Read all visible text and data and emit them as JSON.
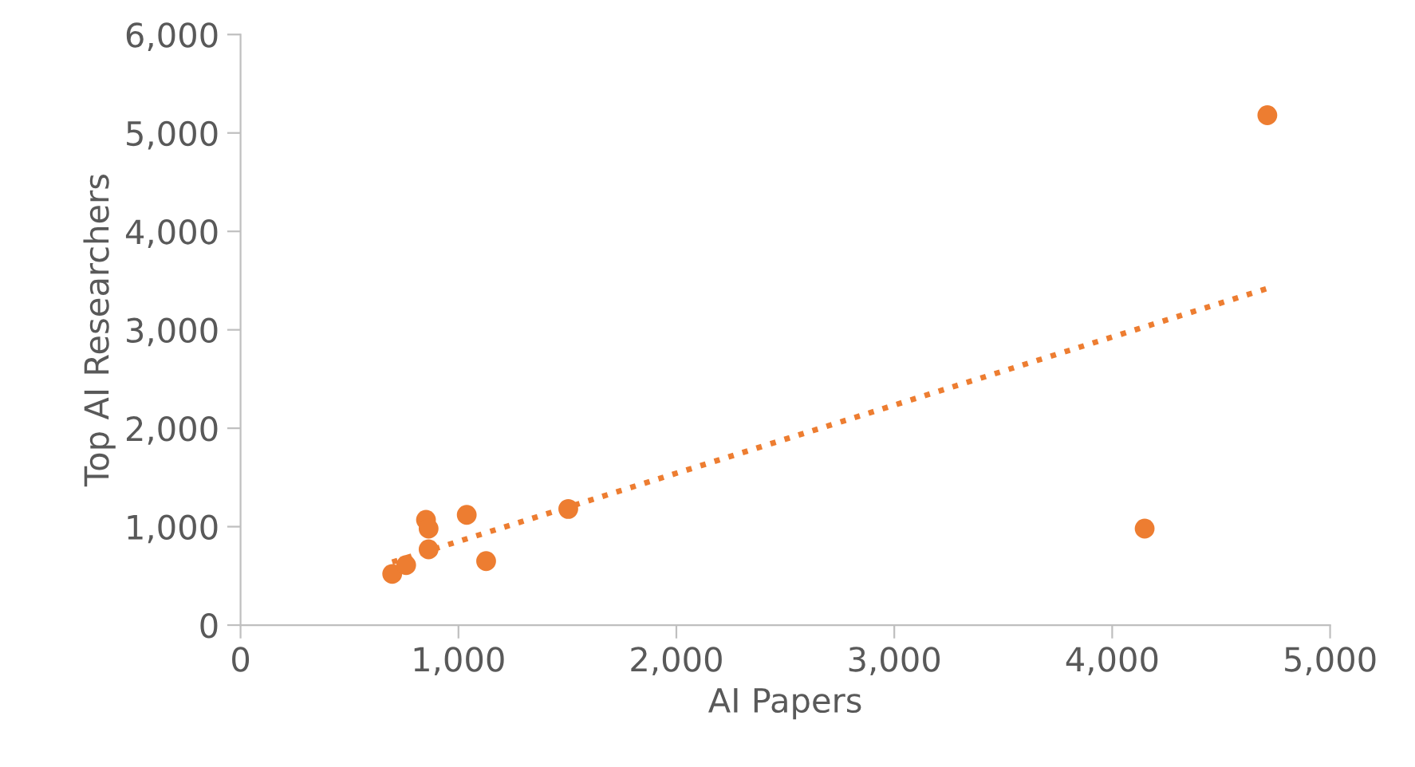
{
  "chart_data": {
    "type": "scatter",
    "xlabel": "AI Papers",
    "ylabel": "Top AI Researchers",
    "xlim": [
      0,
      5000
    ],
    "xticks": [
      {
        "value": 0,
        "label": "0"
      },
      {
        "value": 1000,
        "label": "1,000"
      },
      {
        "value": 2000,
        "label": "2,000"
      },
      {
        "value": 3000,
        "label": "3,000"
      },
      {
        "value": 4000,
        "label": "4,000"
      },
      {
        "value": 5000,
        "label": "5,000"
      }
    ],
    "ylim": [
      0,
      6000
    ],
    "yticks": [
      {
        "value": 0,
        "label": "0"
      },
      {
        "value": 1000,
        "label": "1,000"
      },
      {
        "value": 2000,
        "label": "2,000"
      },
      {
        "value": 3000,
        "label": "3,000"
      },
      {
        "value": 4000,
        "label": "4,000"
      },
      {
        "value": 5000,
        "label": "5,000"
      },
      {
        "value": 6000,
        "label": "6,000"
      }
    ],
    "grid": false,
    "legend": false,
    "series": [
      {
        "color": "#ed7d31",
        "marker": "circle",
        "x": [
          696,
          760,
          851,
          863,
          863,
          1038,
          1127,
          1504,
          4149,
          4712
        ],
        "values": [
          520,
          610,
          1070,
          980,
          770,
          1120,
          650,
          1180,
          980,
          5180
        ]
      },
      {
        "type": "line",
        "color": "#ed7d31",
        "line_style": "dotted",
        "marker": "none",
        "x": [
          696,
          4712
        ],
        "values": [
          640,
          3420
        ]
      }
    ]
  }
}
